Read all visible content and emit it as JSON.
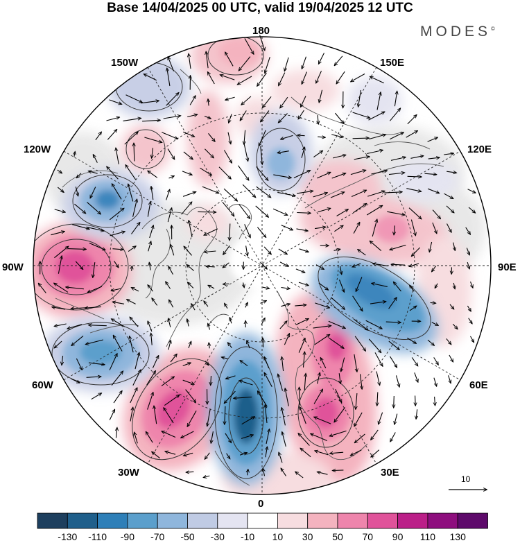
{
  "title": "Base 14/04/2025 00 UTC, valid 19/04/2025 12 UTC",
  "brand": "MODES",
  "brand_mark": "©",
  "longitude_labels": {
    "lon_180": "180",
    "lon_150E": "150E",
    "lon_120E": "120E",
    "lon_90E": "90E",
    "lon_60E": "60E",
    "lon_30E": "30E",
    "lon_0": "0",
    "lon_30W": "30W",
    "lon_60W": "60W",
    "lon_90W": "90W",
    "lon_120W": "120W",
    "lon_150W": "150W"
  },
  "vector_scale_label": "10",
  "colorbar": {
    "ticks": [
      "-130",
      "-110",
      "-90",
      "-70",
      "-50",
      "-30",
      "-10",
      "10",
      "30",
      "50",
      "70",
      "90",
      "110",
      "130"
    ],
    "colors": [
      "#1d3f5e",
      "#1f5f8b",
      "#2e7fb8",
      "#5b9fcc",
      "#8fb6dc",
      "#c0cbe4",
      "#e4e4f1",
      "#ffffff",
      "#f7dde0",
      "#f4b3bf",
      "#ee85ac",
      "#e0539a",
      "#bb1f88",
      "#8e0e7e",
      "#5e0a6b"
    ]
  },
  "map_colors": {
    "ocean_background": "#ffffff",
    "gray_region": "#e6e6e6",
    "positive_light": "#f4c4cc",
    "positive_mid": "#ee85ac",
    "positive_strong": "#e0539a",
    "negative_light": "#c8cfe6",
    "negative_mid": "#8fb6dc",
    "negative_strong": "#3d86bd"
  }
}
